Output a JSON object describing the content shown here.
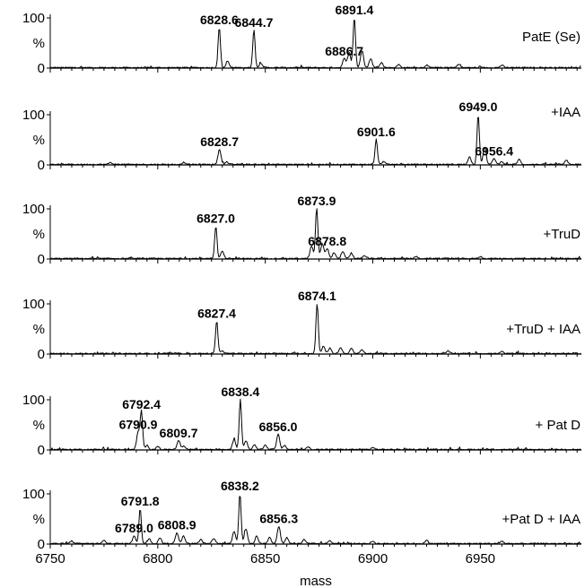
{
  "chart_data": {
    "type": "line",
    "x_axis": {
      "label": "mass",
      "range": [
        6750,
        6997
      ],
      "ticks": [
        6750,
        6800,
        6850,
        6900,
        6950
      ],
      "minor_step": 5
    },
    "y_axis": {
      "range": [
        0,
        100
      ],
      "tick_labels": [
        "100",
        "%",
        "0"
      ]
    },
    "colors": {
      "line": "#000000",
      "background": "#ffffff"
    },
    "panels": [
      {
        "name": "PatE (Se)",
        "peaks": [
          {
            "x": 6828.6,
            "y": 80,
            "label": "6828.6"
          },
          {
            "x": 6844.7,
            "y": 75,
            "label": "6844.7"
          },
          {
            "x": 6886.7,
            "y": 18,
            "label": "6886.7"
          },
          {
            "x": 6891.4,
            "y": 100,
            "label": "6891.4"
          }
        ],
        "minor_peaks": [
          {
            "x": 6832.5,
            "y": 12
          },
          {
            "x": 6848.0,
            "y": 9
          },
          {
            "x": 6889.0,
            "y": 30
          },
          {
            "x": 6895.0,
            "y": 35
          },
          {
            "x": 6899.0,
            "y": 18
          },
          {
            "x": 6904.0,
            "y": 10
          },
          {
            "x": 6912.0,
            "y": 6
          },
          {
            "x": 6925.0,
            "y": 5
          },
          {
            "x": 6940.0,
            "y": 7
          },
          {
            "x": 6960.0,
            "y": 5
          }
        ]
      },
      {
        "name": "+IAA",
        "peaks": [
          {
            "x": 6828.7,
            "y": 30,
            "label": "6828.7"
          },
          {
            "x": 6901.6,
            "y": 50,
            "label": "6901.6"
          },
          {
            "x": 6949.0,
            "y": 100,
            "label": "6949.0"
          },
          {
            "x": 6956.4,
            "y": 12,
            "label": "6956.4"
          }
        ],
        "minor_peaks": [
          {
            "x": 6778.0,
            "y": 4
          },
          {
            "x": 6812.0,
            "y": 4
          },
          {
            "x": 6832.0,
            "y": 5
          },
          {
            "x": 6905.0,
            "y": 6
          },
          {
            "x": 6945.0,
            "y": 15
          },
          {
            "x": 6952.0,
            "y": 35
          },
          {
            "x": 6960.0,
            "y": 6
          },
          {
            "x": 6968.0,
            "y": 10
          },
          {
            "x": 6990.0,
            "y": 8
          }
        ]
      },
      {
        "name": "+TruD",
        "peaks": [
          {
            "x": 6827.0,
            "y": 65,
            "label": "6827.0"
          },
          {
            "x": 6873.9,
            "y": 100,
            "label": "6873.9"
          },
          {
            "x": 6878.8,
            "y": 20,
            "label": "6878.8"
          }
        ],
        "minor_peaks": [
          {
            "x": 6830.0,
            "y": 15
          },
          {
            "x": 6871.5,
            "y": 25
          },
          {
            "x": 6876.5,
            "y": 30
          },
          {
            "x": 6882.0,
            "y": 12
          },
          {
            "x": 6886.0,
            "y": 14
          },
          {
            "x": 6890.0,
            "y": 10
          },
          {
            "x": 6896.0,
            "y": 6
          },
          {
            "x": 6920.0,
            "y": 4
          },
          {
            "x": 6950.0,
            "y": 4
          }
        ]
      },
      {
        "name": "+TruD + IAA",
        "peaks": [
          {
            "x": 6827.4,
            "y": 65,
            "label": "6827.4"
          },
          {
            "x": 6874.1,
            "y": 100,
            "label": "6874.1"
          }
        ],
        "minor_peaks": [
          {
            "x": 6830.0,
            "y": 6
          },
          {
            "x": 6877.0,
            "y": 15
          },
          {
            "x": 6880.0,
            "y": 10
          },
          {
            "x": 6885.0,
            "y": 12
          },
          {
            "x": 6890.0,
            "y": 10
          },
          {
            "x": 6895.0,
            "y": 8
          },
          {
            "x": 6935.0,
            "y": 5
          },
          {
            "x": 6960.0,
            "y": 4
          }
        ]
      },
      {
        "name": "+ Pat D",
        "peaks": [
          {
            "x": 6790.9,
            "y": 35,
            "label": "6790.9"
          },
          {
            "x": 6792.4,
            "y": 75,
            "label": "6792.4"
          },
          {
            "x": 6809.7,
            "y": 18,
            "label": "6809.7"
          },
          {
            "x": 6838.4,
            "y": 100,
            "label": "6838.4"
          },
          {
            "x": 6856.0,
            "y": 30,
            "label": "6856.0"
          }
        ],
        "minor_peaks": [
          {
            "x": 6795.0,
            "y": 8
          },
          {
            "x": 6800.0,
            "y": 6
          },
          {
            "x": 6812.0,
            "y": 6
          },
          {
            "x": 6835.5,
            "y": 20
          },
          {
            "x": 6841.0,
            "y": 18
          },
          {
            "x": 6845.0,
            "y": 10
          },
          {
            "x": 6850.0,
            "y": 10
          },
          {
            "x": 6859.0,
            "y": 8
          },
          {
            "x": 6870.0,
            "y": 5
          },
          {
            "x": 6900.0,
            "y": 4
          }
        ]
      },
      {
        "name": "+Pat D + IAA",
        "peaks": [
          {
            "x": 6789.0,
            "y": 16,
            "label": "6789.0"
          },
          {
            "x": 6791.8,
            "y": 70,
            "label": "6791.8"
          },
          {
            "x": 6808.9,
            "y": 22,
            "label": "6808.9"
          },
          {
            "x": 6838.2,
            "y": 100,
            "label": "6838.2"
          },
          {
            "x": 6856.3,
            "y": 35,
            "label": "6856.3"
          }
        ],
        "minor_peaks": [
          {
            "x": 6760.0,
            "y": 5
          },
          {
            "x": 6775.0,
            "y": 6
          },
          {
            "x": 6796.0,
            "y": 10
          },
          {
            "x": 6801.0,
            "y": 12
          },
          {
            "x": 6812.0,
            "y": 15
          },
          {
            "x": 6820.0,
            "y": 8
          },
          {
            "x": 6826.0,
            "y": 10
          },
          {
            "x": 6835.5,
            "y": 25
          },
          {
            "x": 6841.0,
            "y": 30
          },
          {
            "x": 6846.0,
            "y": 15
          },
          {
            "x": 6852.0,
            "y": 12
          },
          {
            "x": 6860.0,
            "y": 12
          },
          {
            "x": 6868.0,
            "y": 8
          },
          {
            "x": 6880.0,
            "y": 6
          },
          {
            "x": 6900.0,
            "y": 5
          },
          {
            "x": 6925.0,
            "y": 6
          },
          {
            "x": 6960.0,
            "y": 5
          }
        ]
      }
    ]
  }
}
